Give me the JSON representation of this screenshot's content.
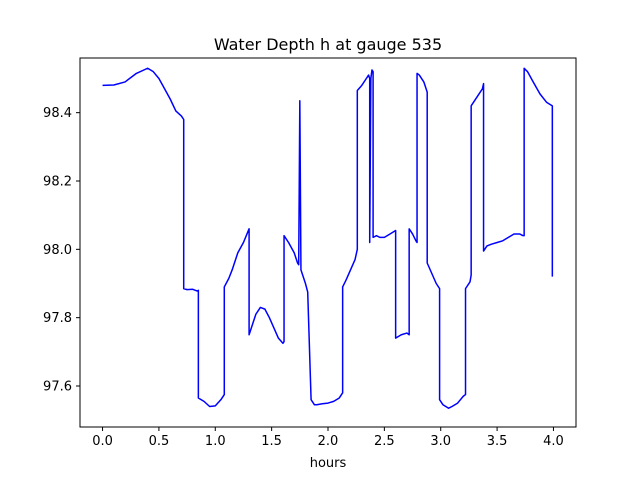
{
  "chart_data": {
    "type": "line",
    "title": "Water Depth h at gauge 535",
    "xlabel": "hours",
    "ylabel": "",
    "xlim": [
      -0.2,
      4.2
    ],
    "ylim": [
      97.48,
      98.56
    ],
    "xticks": [
      0.0,
      0.5,
      1.0,
      1.5,
      2.0,
      2.5,
      3.0,
      3.5,
      4.0
    ],
    "xtick_labels": [
      "0.0",
      "0.5",
      "1.0",
      "1.5",
      "2.0",
      "2.5",
      "3.0",
      "3.5",
      "4.0"
    ],
    "yticks": [
      97.6,
      97.8,
      98.0,
      98.2,
      98.4
    ],
    "ytick_labels": [
      "97.6",
      "97.8",
      "98.0",
      "98.2",
      "98.4"
    ],
    "grid": false,
    "legend": "none",
    "series": [
      {
        "color": "#0000ff",
        "x": [
          0.0,
          0.1,
          0.2,
          0.3,
          0.4,
          0.45,
          0.5,
          0.55,
          0.6,
          0.65,
          0.7,
          0.72,
          0.72,
          0.75,
          0.8,
          0.84,
          0.85,
          0.85,
          0.9,
          0.95,
          1.0,
          1.05,
          1.08,
          1.08,
          1.12,
          1.15,
          1.2,
          1.25,
          1.3,
          1.3,
          1.33,
          1.36,
          1.4,
          1.44,
          1.48,
          1.52,
          1.56,
          1.6,
          1.61,
          1.61,
          1.65,
          1.7,
          1.73,
          1.74,
          1.75,
          1.76,
          1.8,
          1.82,
          1.85,
          1.88,
          1.9,
          1.95,
          2.0,
          2.05,
          2.1,
          2.13,
          2.13,
          2.16,
          2.2,
          2.24,
          2.26,
          2.26,
          2.3,
          2.34,
          2.36,
          2.37,
          2.37,
          2.38,
          2.39,
          2.4,
          2.4,
          2.43,
          2.46,
          2.5,
          2.55,
          2.6,
          2.6,
          2.65,
          2.7,
          2.72,
          2.72,
          2.75,
          2.78,
          2.79,
          2.79,
          2.81,
          2.85,
          2.88,
          2.88,
          2.92,
          2.96,
          2.99,
          2.99,
          3.02,
          3.07,
          3.1,
          3.15,
          3.2,
          3.22,
          3.22,
          3.26,
          3.27,
          3.27,
          3.32,
          3.37,
          3.38,
          3.38,
          3.41,
          3.45,
          3.5,
          3.55,
          3.6,
          3.65,
          3.7,
          3.73,
          3.74,
          3.74,
          3.77,
          3.82,
          3.88,
          3.94,
          3.99,
          3.99
        ],
        "y": [
          98.48,
          98.481,
          98.49,
          98.515,
          98.53,
          98.52,
          98.5,
          98.47,
          98.44,
          98.405,
          98.39,
          98.38,
          97.885,
          97.882,
          97.883,
          97.878,
          97.88,
          97.565,
          97.555,
          97.54,
          97.542,
          97.56,
          97.575,
          97.89,
          97.915,
          97.94,
          97.99,
          98.02,
          98.06,
          97.75,
          97.78,
          97.81,
          97.83,
          97.825,
          97.8,
          97.77,
          97.74,
          97.725,
          97.73,
          98.04,
          98.02,
          97.99,
          97.96,
          97.955,
          98.435,
          97.94,
          97.9,
          97.875,
          97.56,
          97.545,
          97.545,
          97.548,
          97.55,
          97.555,
          97.565,
          97.58,
          97.89,
          97.91,
          97.94,
          97.97,
          98.0,
          98.465,
          98.48,
          98.5,
          98.51,
          98.5,
          98.02,
          98.5,
          98.525,
          98.52,
          98.035,
          98.04,
          98.035,
          98.035,
          98.045,
          98.055,
          97.74,
          97.75,
          97.755,
          97.75,
          98.06,
          98.045,
          98.025,
          98.02,
          98.515,
          98.51,
          98.49,
          98.46,
          97.96,
          97.93,
          97.9,
          97.885,
          97.56,
          97.545,
          97.535,
          97.54,
          97.55,
          97.57,
          97.575,
          97.885,
          97.905,
          97.925,
          98.42,
          98.445,
          98.47,
          98.485,
          97.995,
          98.01,
          98.015,
          98.02,
          98.025,
          98.035,
          98.045,
          98.045,
          98.04,
          98.04,
          98.53,
          98.52,
          98.49,
          98.455,
          98.43,
          98.42,
          97.92
        ]
      }
    ]
  }
}
